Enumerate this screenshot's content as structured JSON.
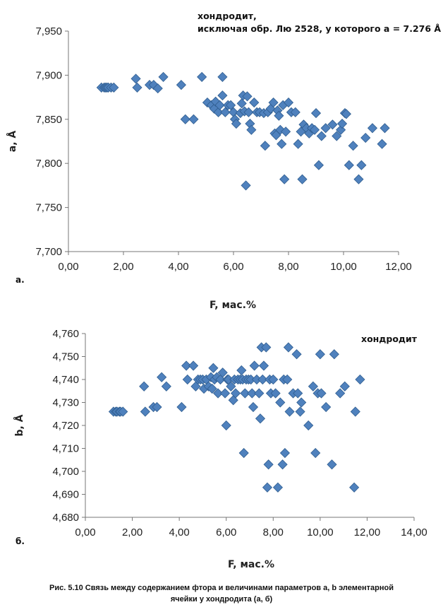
{
  "chart_data": [
    {
      "type": "scatter",
      "panel_label": "a.",
      "annotation": [
        "хондродит,",
        "исключая обр. Лю 2528,  у которого а = 7.276 Å"
      ],
      "xlabel": "F, мас.%",
      "ylabel": "a, Å",
      "xlim": [
        0,
        12
      ],
      "ylim": [
        7.7,
        7.95
      ],
      "x_ticks": [
        "0,00",
        "2,00",
        "4,00",
        "6,00",
        "8,00",
        "10,00",
        "12,00"
      ],
      "y_ticks": [
        "7,700",
        "7,750",
        "7,800",
        "7,850",
        "7,900",
        "7,950"
      ],
      "grid": false,
      "marker_color": "#4f81bd",
      "points": [
        [
          1.2,
          7.886
        ],
        [
          1.3,
          7.886
        ],
        [
          1.35,
          7.886
        ],
        [
          1.4,
          7.886
        ],
        [
          1.45,
          7.886
        ],
        [
          1.55,
          7.886
        ],
        [
          1.65,
          7.886
        ],
        [
          2.45,
          7.896
        ],
        [
          2.5,
          7.886
        ],
        [
          2.95,
          7.889
        ],
        [
          3.1,
          7.889
        ],
        [
          3.25,
          7.885
        ],
        [
          3.45,
          7.898
        ],
        [
          4.1,
          7.889
        ],
        [
          4.25,
          7.85
        ],
        [
          4.55,
          7.85
        ],
        [
          4.85,
          7.898
        ],
        [
          5.05,
          7.869
        ],
        [
          5.2,
          7.866
        ],
        [
          5.3,
          7.862
        ],
        [
          5.35,
          7.87
        ],
        [
          5.45,
          7.858
        ],
        [
          5.5,
          7.866
        ],
        [
          5.6,
          7.898
        ],
        [
          5.6,
          7.877
        ],
        [
          5.7,
          7.858
        ],
        [
          5.8,
          7.866
        ],
        [
          5.9,
          7.866
        ],
        [
          6.0,
          7.858
        ],
        [
          6.05,
          7.85
        ],
        [
          6.1,
          7.845
        ],
        [
          6.25,
          7.857
        ],
        [
          6.3,
          7.868
        ],
        [
          6.35,
          7.877
        ],
        [
          6.4,
          7.859
        ],
        [
          6.45,
          7.775
        ],
        [
          6.5,
          7.876
        ],
        [
          6.55,
          7.858
        ],
        [
          6.6,
          7.845
        ],
        [
          6.65,
          7.838
        ],
        [
          6.75,
          7.869
        ],
        [
          6.85,
          7.858
        ],
        [
          6.95,
          7.858
        ],
        [
          7.1,
          7.857
        ],
        [
          7.15,
          7.82
        ],
        [
          7.25,
          7.858
        ],
        [
          7.35,
          7.862
        ],
        [
          7.45,
          7.869
        ],
        [
          7.5,
          7.834
        ],
        [
          7.55,
          7.832
        ],
        [
          7.6,
          7.86
        ],
        [
          7.65,
          7.854
        ],
        [
          7.7,
          7.838
        ],
        [
          7.75,
          7.822
        ],
        [
          7.8,
          7.866
        ],
        [
          7.85,
          7.782
        ],
        [
          7.9,
          7.836
        ],
        [
          8.0,
          7.869
        ],
        [
          8.1,
          7.858
        ],
        [
          8.25,
          7.858
        ],
        [
          8.35,
          7.822
        ],
        [
          8.45,
          7.836
        ],
        [
          8.5,
          7.782
        ],
        [
          8.55,
          7.844
        ],
        [
          8.65,
          7.84
        ],
        [
          8.75,
          7.834
        ],
        [
          8.85,
          7.84
        ],
        [
          8.95,
          7.838
        ],
        [
          9.0,
          7.857
        ],
        [
          9.1,
          7.798
        ],
        [
          9.2,
          7.831
        ],
        [
          9.35,
          7.84
        ],
        [
          9.6,
          7.844
        ],
        [
          9.75,
          7.831
        ],
        [
          9.9,
          7.838
        ],
        [
          9.95,
          7.845
        ],
        [
          10.05,
          7.857
        ],
        [
          10.1,
          7.856
        ],
        [
          10.2,
          7.798
        ],
        [
          10.35,
          7.82
        ],
        [
          10.55,
          7.782
        ],
        [
          10.65,
          7.798
        ],
        [
          10.8,
          7.829
        ],
        [
          11.05,
          7.84
        ],
        [
          11.4,
          7.822
        ],
        [
          11.5,
          7.84
        ]
      ]
    },
    {
      "type": "scatter",
      "panel_label": "б.",
      "annotation": [
        "хондродит"
      ],
      "xlabel": "F, мас.%",
      "ylabel": "b, Å",
      "xlim": [
        0,
        14
      ],
      "ylim": [
        4.68,
        4.76
      ],
      "x_ticks": [
        "0,00",
        "2,00",
        "4,00",
        "6,00",
        "8,00",
        "10,00",
        "12,00",
        "14,00"
      ],
      "y_ticks": [
        "4,680",
        "4,690",
        "4,700",
        "4,710",
        "4,720",
        "4,730",
        "4,740",
        "4,750",
        "4,760"
      ],
      "grid": false,
      "marker_color": "#4f81bd",
      "points": [
        [
          1.2,
          4.726
        ],
        [
          1.3,
          4.726
        ],
        [
          1.35,
          4.726
        ],
        [
          1.45,
          4.726
        ],
        [
          1.5,
          4.726
        ],
        [
          1.6,
          4.726
        ],
        [
          2.5,
          4.737
        ],
        [
          2.55,
          4.726
        ],
        [
          2.9,
          4.728
        ],
        [
          3.05,
          4.728
        ],
        [
          3.25,
          4.741
        ],
        [
          3.45,
          4.737
        ],
        [
          4.1,
          4.728
        ],
        [
          4.3,
          4.746
        ],
        [
          4.35,
          4.74
        ],
        [
          4.6,
          4.746
        ],
        [
          4.7,
          4.737
        ],
        [
          4.8,
          4.74
        ],
        [
          4.9,
          4.74
        ],
        [
          5.0,
          4.74
        ],
        [
          5.05,
          4.736
        ],
        [
          5.15,
          4.74
        ],
        [
          5.25,
          4.737
        ],
        [
          5.35,
          4.741
        ],
        [
          5.4,
          4.736
        ],
        [
          5.45,
          4.745
        ],
        [
          5.5,
          4.74
        ],
        [
          5.6,
          4.741
        ],
        [
          5.65,
          4.734
        ],
        [
          5.75,
          4.74
        ],
        [
          5.85,
          4.743
        ],
        [
          5.95,
          4.734
        ],
        [
          6.0,
          4.72
        ],
        [
          6.05,
          4.74
        ],
        [
          6.1,
          4.74
        ],
        [
          6.2,
          4.737
        ],
        [
          6.3,
          4.731
        ],
        [
          6.35,
          4.74
        ],
        [
          6.4,
          4.734
        ],
        [
          6.5,
          4.74
        ],
        [
          6.6,
          4.74
        ],
        [
          6.65,
          4.744
        ],
        [
          6.7,
          4.74
        ],
        [
          6.75,
          4.708
        ],
        [
          6.8,
          4.734
        ],
        [
          6.85,
          4.74
        ],
        [
          6.95,
          4.74
        ],
        [
          7.05,
          4.74
        ],
        [
          7.1,
          4.734
        ],
        [
          7.15,
          4.728
        ],
        [
          7.2,
          4.746
        ],
        [
          7.3,
          4.74
        ],
        [
          7.4,
          4.734
        ],
        [
          7.45,
          4.723
        ],
        [
          7.5,
          4.754
        ],
        [
          7.55,
          4.74
        ],
        [
          7.6,
          4.746
        ],
        [
          7.7,
          4.754
        ],
        [
          7.75,
          4.693
        ],
        [
          7.8,
          4.703
        ],
        [
          7.85,
          4.74
        ],
        [
          7.9,
          4.734
        ],
        [
          8.0,
          4.74
        ],
        [
          8.1,
          4.734
        ],
        [
          8.2,
          4.693
        ],
        [
          8.3,
          4.73
        ],
        [
          8.4,
          4.703
        ],
        [
          8.45,
          4.74
        ],
        [
          8.5,
          4.708
        ],
        [
          8.6,
          4.74
        ],
        [
          8.65,
          4.754
        ],
        [
          8.7,
          4.726
        ],
        [
          8.85,
          4.734
        ],
        [
          9.0,
          4.751
        ],
        [
          9.05,
          4.734
        ],
        [
          9.15,
          4.726
        ],
        [
          9.2,
          4.73
        ],
        [
          9.5,
          4.72
        ],
        [
          9.7,
          4.737
        ],
        [
          9.8,
          4.708
        ],
        [
          9.9,
          4.734
        ],
        [
          10.0,
          4.751
        ],
        [
          10.05,
          4.734
        ],
        [
          10.25,
          4.728
        ],
        [
          10.5,
          4.703
        ],
        [
          10.6,
          4.751
        ],
        [
          10.85,
          4.734
        ],
        [
          11.05,
          4.737
        ],
        [
          11.45,
          4.693
        ],
        [
          11.5,
          4.726
        ],
        [
          11.7,
          4.74
        ]
      ]
    }
  ],
  "caption": [
    "Рис. 5.10 Связь между содержанием фтора  и величинами  параметров   a, b элементарной",
    "ячейки у хондродита (а, б)"
  ]
}
